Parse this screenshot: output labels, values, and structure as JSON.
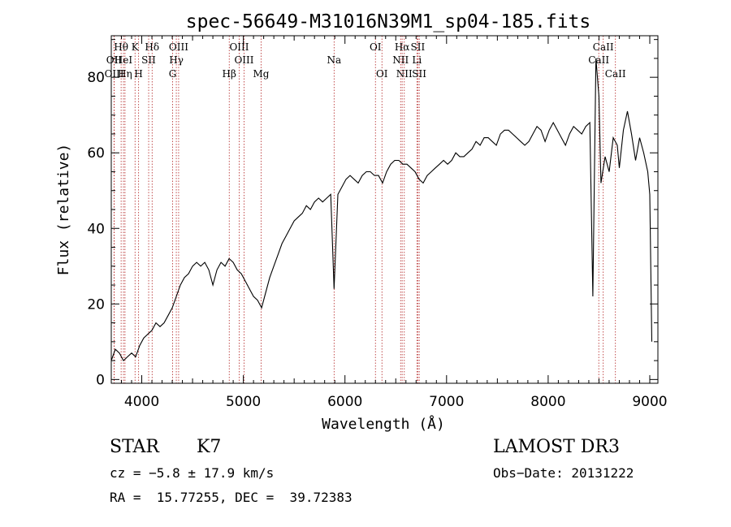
{
  "chart_data": {
    "type": "line",
    "title": "spec-56649-M31016N39M1_sp04-185.fits",
    "xlabel": "Wavelength (Å)",
    "ylabel": "Flux (relative)",
    "xlim": [
      3700,
      9080
    ],
    "ylim": [
      -1,
      91
    ],
    "xticks": [
      4000,
      5000,
      6000,
      7000,
      8000,
      9000
    ],
    "yticks": [
      0,
      20,
      40,
      60,
      80
    ],
    "grid": false,
    "series": [
      {
        "x": [
          3700,
          3740,
          3780,
          3820,
          3860,
          3900,
          3940,
          3980,
          4020,
          4060,
          4100,
          4140,
          4180,
          4220,
          4260,
          4300,
          4340,
          4380,
          4420,
          4460,
          4500,
          4540,
          4580,
          4620,
          4660,
          4700,
          4740,
          4780,
          4820,
          4860,
          4900,
          4940,
          4980,
          5020,
          5060,
          5100,
          5140,
          5180,
          5220,
          5260,
          5300,
          5340,
          5380,
          5420,
          5460,
          5500,
          5540,
          5580,
          5620,
          5660,
          5700,
          5740,
          5780,
          5820,
          5860,
          5893,
          5930,
          5970,
          6010,
          6050,
          6090,
          6130,
          6170,
          6210,
          6250,
          6290,
          6330,
          6370,
          6410,
          6450,
          6490,
          6530,
          6570,
          6610,
          6650,
          6690,
          6730,
          6770,
          6810,
          6850,
          6890,
          6930,
          6970,
          7010,
          7050,
          7090,
          7130,
          7170,
          7210,
          7250,
          7290,
          7330,
          7370,
          7410,
          7450,
          7490,
          7530,
          7570,
          7610,
          7650,
          7690,
          7730,
          7770,
          7810,
          7850,
          7890,
          7930,
          7970,
          8010,
          8050,
          8090,
          8130,
          8170,
          8210,
          8250,
          8290,
          8330,
          8370,
          8410,
          8440,
          8470,
          8500,
          8520,
          8560,
          8600,
          8640,
          8680,
          8700,
          8740,
          8780,
          8820,
          8860,
          8900,
          8940,
          8980,
          9000,
          9020
        ],
        "y": [
          5,
          8,
          7,
          5,
          6,
          7,
          6,
          9,
          11,
          12,
          13,
          15,
          14,
          15,
          17,
          19,
          22,
          25,
          27,
          28,
          30,
          31,
          30,
          31,
          29,
          25,
          29,
          31,
          30,
          32,
          31,
          29,
          28,
          26,
          24,
          22,
          21,
          19,
          23,
          27,
          30,
          33,
          36,
          38,
          40,
          42,
          43,
          44,
          46,
          45,
          47,
          48,
          47,
          48,
          49,
          24,
          49,
          51,
          53,
          54,
          53,
          52,
          54,
          55,
          55,
          54,
          54,
          52,
          55,
          57,
          58,
          58,
          57,
          57,
          56,
          55,
          53,
          52,
          54,
          55,
          56,
          57,
          58,
          57,
          58,
          60,
          59,
          59,
          60,
          61,
          63,
          62,
          64,
          64,
          63,
          62,
          65,
          66,
          66,
          65,
          64,
          63,
          62,
          63,
          65,
          67,
          66,
          63,
          66,
          68,
          66,
          64,
          62,
          65,
          67,
          66,
          65,
          67,
          68,
          22,
          85,
          75,
          52,
          59,
          55,
          64,
          62,
          56,
          66,
          71,
          65,
          58,
          64,
          60,
          55,
          49,
          10
        ]
      }
    ],
    "spectral_lines": [
      {
        "label": "Hθ",
        "wl": 3797,
        "row": 1
      },
      {
        "label": "OII",
        "wl": 3727,
        "row": 2
      },
      {
        "label": "OIII",
        "wl": 3729,
        "row": 3
      },
      {
        "label": "HeI",
        "wl": 3820,
        "row": 2
      },
      {
        "label": "Hη",
        "wl": 3835,
        "row": 3
      },
      {
        "label": "K",
        "wl": 3934,
        "row": 1
      },
      {
        "label": "SII",
        "wl": 4068,
        "row": 2
      },
      {
        "label": "H",
        "wl": 3969,
        "row": 3
      },
      {
        "label": "Hδ",
        "wl": 4102,
        "row": 1
      },
      {
        "label": "OIII",
        "wl": 4363,
        "row": 1
      },
      {
        "label": "Hγ",
        "wl": 4340,
        "row": 2
      },
      {
        "label": "G",
        "wl": 4304,
        "row": 3
      },
      {
        "label": "OIII",
        "wl": 4959,
        "row": 1
      },
      {
        "label": "OIII",
        "wl": 5007,
        "row": 2
      },
      {
        "label": "Hβ",
        "wl": 4861,
        "row": 3
      },
      {
        "label": "Mg",
        "wl": 5175,
        "row": 3
      },
      {
        "label": "Na",
        "wl": 5893,
        "row": 2
      },
      {
        "label": "OI",
        "wl": 6300,
        "row": 1
      },
      {
        "label": "OI",
        "wl": 6364,
        "row": 3
      },
      {
        "label": "Hα",
        "wl": 6563,
        "row": 1
      },
      {
        "label": "NII",
        "wl": 6548,
        "row": 2
      },
      {
        "label": "NII",
        "wl": 6584,
        "row": 3
      },
      {
        "label": "SII",
        "wl": 6717,
        "row": 1
      },
      {
        "label": "Li",
        "wl": 6708,
        "row": 2
      },
      {
        "label": "SII",
        "wl": 6731,
        "row": 3
      },
      {
        "label": "CaII",
        "wl": 8542,
        "row": 1
      },
      {
        "label": "CaII",
        "wl": 8498,
        "row": 2
      },
      {
        "label": "CaII",
        "wl": 8662,
        "row": 3
      }
    ]
  },
  "info": {
    "class": "STAR",
    "subclass": "K7",
    "survey": "LAMOST DR3",
    "cz": "cz = −5.8 ± 17.9 km/s",
    "obs_date": "Obs−Date: 20131222",
    "radec": "RA =  15.77255, DEC =  39.72383"
  },
  "colors": {
    "line_marker": "#b22222",
    "spectrum": "#000000"
  }
}
